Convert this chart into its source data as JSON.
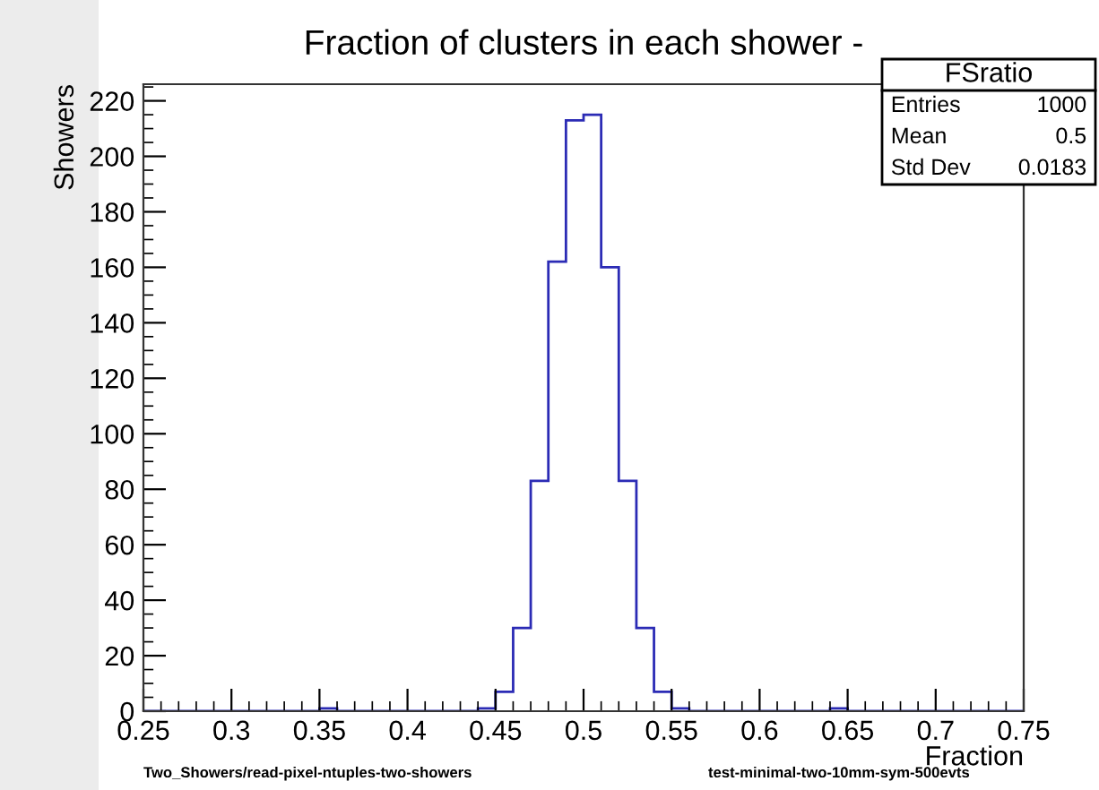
{
  "chart_data": {
    "type": "histogram",
    "title": "Fraction of clusters in each shower -",
    "xlabel": "Fraction",
    "ylabel": "Showers",
    "bins": [
      0.25,
      0.26,
      0.27,
      0.28,
      0.29,
      0.3,
      0.31,
      0.32,
      0.33,
      0.34,
      0.35,
      0.36,
      0.37,
      0.38,
      0.39,
      0.4,
      0.41,
      0.42,
      0.43,
      0.44,
      0.45,
      0.46,
      0.47,
      0.48,
      0.49,
      0.5,
      0.51,
      0.52,
      0.53,
      0.54,
      0.55,
      0.56,
      0.57,
      0.58,
      0.59,
      0.6,
      0.61,
      0.62,
      0.63,
      0.64,
      0.65,
      0.66,
      0.67,
      0.68,
      0.69,
      0.7,
      0.71,
      0.72,
      0.73,
      0.74,
      0.75
    ],
    "values": [
      0,
      0,
      0,
      0,
      0,
      0,
      0,
      0,
      0,
      0,
      1,
      0,
      0,
      0,
      0,
      0,
      0,
      0,
      0,
      1,
      7,
      30,
      83,
      162,
      213,
      215,
      160,
      83,
      30,
      7,
      1,
      0,
      0,
      0,
      0,
      0,
      0,
      0,
      0,
      1,
      0,
      0,
      0,
      0,
      0,
      0,
      0,
      0,
      0,
      0
    ],
    "color": "#2b2bb5",
    "xlim": [
      0.25,
      0.75
    ],
    "xticks": [
      0.25,
      0.3,
      0.35,
      0.4,
      0.45,
      0.5,
      0.55,
      0.6,
      0.65,
      0.7,
      0.75
    ],
    "ylim": [
      0,
      226
    ],
    "yticks": [
      0,
      20,
      40,
      60,
      80,
      100,
      120,
      140,
      160,
      180,
      200,
      220
    ],
    "grid": false,
    "legend": false,
    "annotations": [
      "FSratio",
      "Entries",
      "1000",
      "Mean",
      "0.5",
      "Std Dev",
      "0.0183",
      "Two_Showers/read-pixel-ntuples-two-showers",
      "test-minimal-two-10mm-sym-500evts"
    ]
  }
}
